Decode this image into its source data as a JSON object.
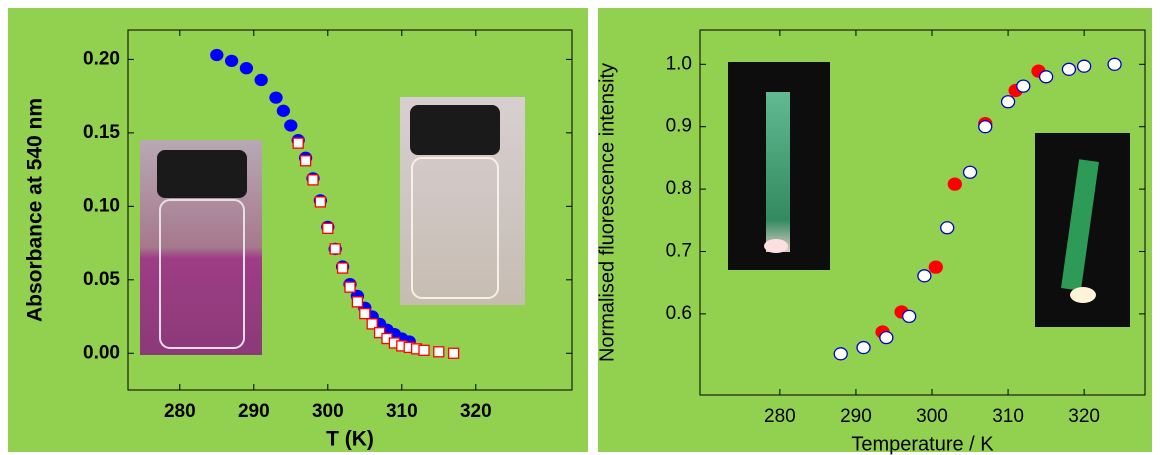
{
  "chart_data": [
    {
      "type": "scatter",
      "y_label": "Absorbance at 540 nm",
      "x_label": "T (K)",
      "xlim": [
        273,
        333
      ],
      "ylim": [
        -0.025,
        0.22
      ],
      "xticks": [
        280,
        290,
        300,
        310,
        320
      ],
      "yticks": [
        {
          "value": 0,
          "label": "0.00"
        },
        0.05,
        {
          "value": 0.1,
          "label": "0.10"
        },
        0.15,
        {
          "value": 0.2,
          "label": "0.20"
        }
      ],
      "series": [
        {
          "color": "#0000ff",
          "marker": "circle",
          "filled": true,
          "x": [
            285,
            287,
            289,
            291,
            293,
            294,
            295,
            296,
            297,
            298,
            299,
            300,
            301,
            302,
            303,
            304,
            305,
            306,
            307,
            308,
            309,
            310,
            311
          ],
          "values": [
            0.203,
            0.199,
            0.194,
            0.186,
            0.174,
            0.165,
            0.155,
            0.145,
            0.133,
            0.119,
            0.104,
            0.086,
            0.071,
            0.059,
            0.047,
            0.039,
            0.031,
            0.025,
            0.02,
            0.016,
            0.013,
            0.01,
            0.008
          ]
        },
        {
          "color": "#ff0000",
          "marker": "square",
          "filled": false,
          "x": [
            296,
            297,
            298,
            299,
            300,
            301,
            302,
            303,
            304,
            305,
            306,
            307,
            308,
            309,
            310,
            311,
            312,
            313,
            315,
            317
          ],
          "values": [
            0.143,
            0.131,
            0.118,
            0.103,
            0.085,
            0.071,
            0.058,
            0.045,
            0.035,
            0.027,
            0.02,
            0.014,
            0.01,
            0.007,
            0.005,
            0.004,
            0.003,
            0.002,
            0.001,
            0
          ]
        }
      ]
    },
    {
      "type": "scatter",
      "y_label": "Normalised fluorescence intensity",
      "x_label": "Temperature / K",
      "xlim": [
        269.5,
        328
      ],
      "ylim": [
        0.47,
        1.055
      ],
      "xticks": [
        280,
        290,
        300,
        310,
        320
      ],
      "yticks": [
        0.6,
        0.7,
        0.8,
        0.9,
        {
          "value": 1,
          "label": "1.0"
        }
      ],
      "series": [
        {
          "color": "#ff0000",
          "marker": "circle",
          "filled": true,
          "x": [
            293.5,
            296,
            300.5,
            303,
            307,
            311,
            314
          ],
          "values": [
            0.571,
            0.603,
            0.675,
            0.808,
            0.905,
            0.958,
            0.989
          ]
        },
        {
          "color": "#0000cc",
          "marker": "circle",
          "filled": false,
          "x": [
            288,
            291,
            294,
            297,
            299,
            302,
            305,
            307,
            310,
            312,
            315,
            318,
            320,
            324
          ],
          "values": [
            0.536,
            0.546,
            0.562,
            0.596,
            0.661,
            0.738,
            0.827,
            0.9,
            0.94,
            0.965,
            0.98,
            0.992,
            0.997,
            1
          ]
        }
      ]
    }
  ]
}
